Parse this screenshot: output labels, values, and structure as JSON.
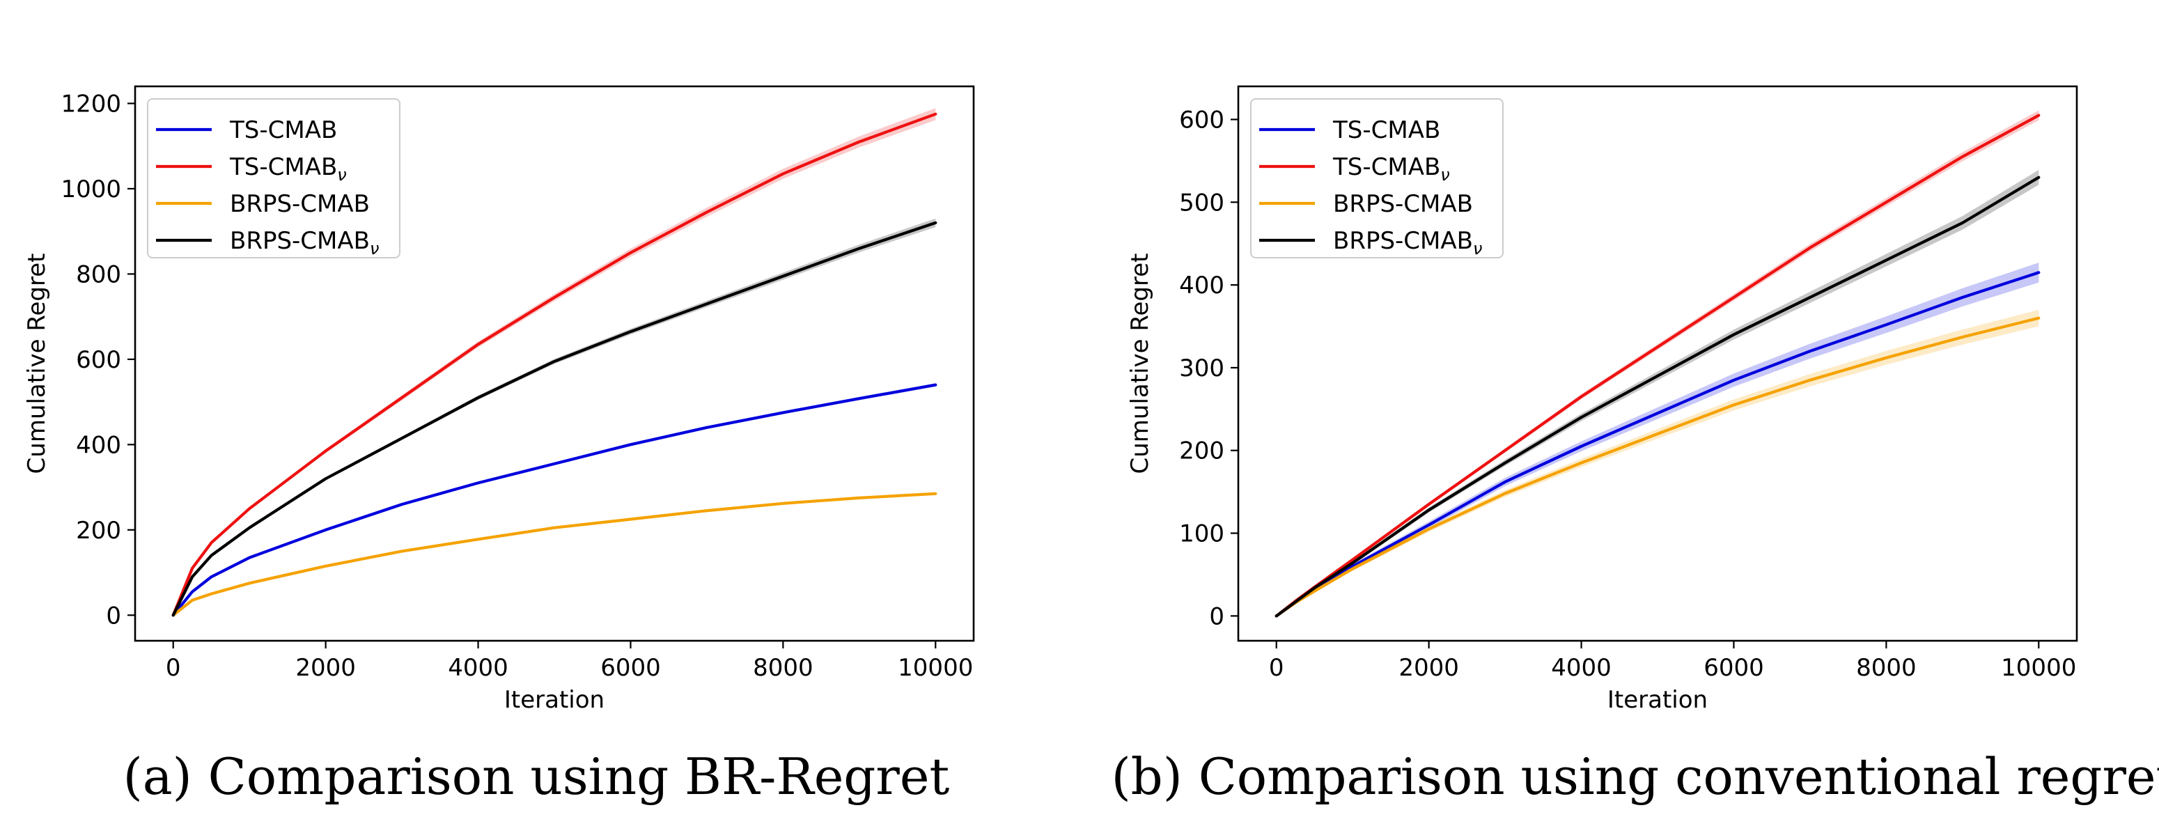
{
  "chart_data": [
    {
      "type": "line",
      "caption": "(a) Comparison using BR-Regret",
      "xlabel": "Iteration",
      "ylabel": "Cumulative Regret",
      "xlim": [
        -500,
        10500
      ],
      "ylim": [
        -60,
        1240
      ],
      "xticks": [
        0,
        2000,
        4000,
        6000,
        8000,
        10000
      ],
      "xtick_labels": [
        "0",
        "2000",
        "4000",
        "6000",
        "8000",
        "10000"
      ],
      "yticks": [
        0,
        200,
        400,
        600,
        800,
        1000,
        1200
      ],
      "ytick_labels": [
        "0",
        "200",
        "400",
        "600",
        "800",
        "1000",
        "1200"
      ],
      "legend_position": "top-left",
      "x": [
        0,
        250,
        500,
        1000,
        2000,
        3000,
        4000,
        5000,
        6000,
        7000,
        8000,
        9000,
        10000
      ],
      "series": [
        {
          "name": "TS-CMAB",
          "subscript": "",
          "color": "#0000dd",
          "band": 4,
          "values": [
            0,
            55,
            90,
            135,
            200,
            260,
            310,
            355,
            400,
            440,
            475,
            508,
            540
          ]
        },
        {
          "name": "TS-CMAB",
          "subscript": "ν",
          "color": "#ee1111",
          "band": 14,
          "values": [
            0,
            110,
            170,
            250,
            385,
            510,
            635,
            745,
            850,
            945,
            1035,
            1110,
            1175
          ]
        },
        {
          "name": "BRPS-CMAB",
          "subscript": "",
          "color": "#f5a200",
          "band": 3,
          "values": [
            0,
            35,
            50,
            75,
            115,
            150,
            178,
            205,
            225,
            245,
            262,
            275,
            285
          ]
        },
        {
          "name": "BRPS-CMAB",
          "subscript": "ν",
          "color": "#000000",
          "band": 10,
          "values": [
            0,
            90,
            140,
            205,
            320,
            415,
            510,
            595,
            665,
            730,
            795,
            860,
            920
          ]
        }
      ]
    },
    {
      "type": "line",
      "caption": "(b) Comparison using conventional regret",
      "xlabel": "Iteration",
      "ylabel": "Cumulative Regret",
      "xlim": [
        -500,
        10500
      ],
      "ylim": [
        -30,
        640
      ],
      "xticks": [
        0,
        2000,
        4000,
        6000,
        8000,
        10000
      ],
      "xtick_labels": [
        "0",
        "2000",
        "4000",
        "6000",
        "8000",
        "10000"
      ],
      "yticks": [
        0,
        100,
        200,
        300,
        400,
        500,
        600
      ],
      "ytick_labels": [
        "0",
        "100",
        "200",
        "300",
        "400",
        "500",
        "600"
      ],
      "legend_position": "top-left",
      "x": [
        0,
        250,
        500,
        1000,
        2000,
        3000,
        4000,
        5000,
        6000,
        7000,
        8000,
        9000,
        10000
      ],
      "series": [
        {
          "name": "TS-CMAB",
          "subscript": "",
          "color": "#0000dd",
          "band": 12,
          "values": [
            0,
            16,
            32,
            60,
            110,
            162,
            205,
            245,
            285,
            320,
            352,
            385,
            415
          ]
        },
        {
          "name": "TS-CMAB",
          "subscript": "ν",
          "color": "#ee1111",
          "band": 6,
          "values": [
            0,
            18,
            35,
            68,
            135,
            200,
            265,
            325,
            385,
            445,
            500,
            555,
            605
          ]
        },
        {
          "name": "BRPS-CMAB",
          "subscript": "",
          "color": "#f5a200",
          "band": 10,
          "values": [
            0,
            16,
            30,
            57,
            105,
            148,
            185,
            220,
            255,
            285,
            312,
            337,
            360
          ]
        },
        {
          "name": "BRPS-CMAB",
          "subscript": "ν",
          "color": "#000000",
          "band": 9,
          "values": [
            0,
            17,
            34,
            64,
            128,
            185,
            240,
            290,
            340,
            385,
            430,
            475,
            530
          ]
        }
      ]
    }
  ]
}
